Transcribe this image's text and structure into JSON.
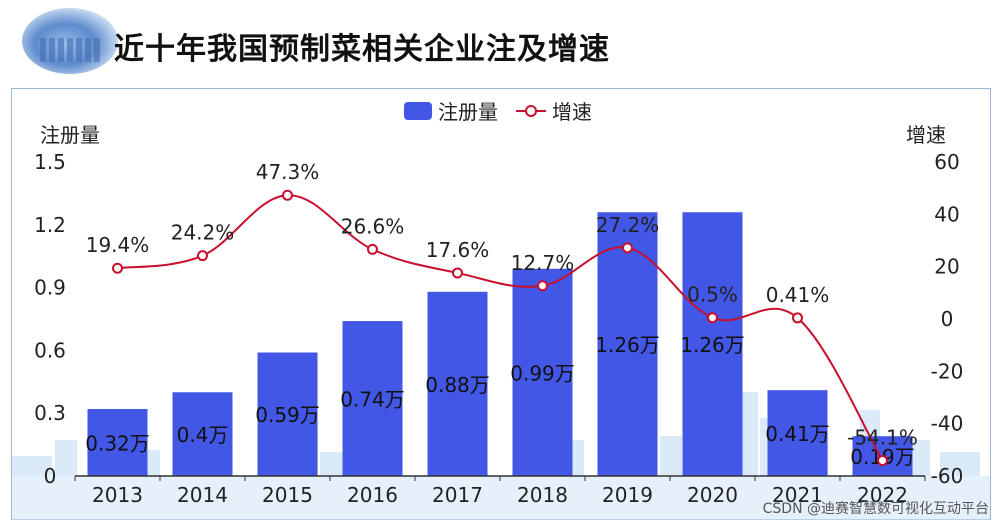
{
  "header": {
    "title": "近十年我国预制菜相关企业注及增速"
  },
  "watermark": "CSDN @迪赛智慧数可视化互动平台",
  "colors": {
    "bar": "#4257e6",
    "line": "#c8102e",
    "skyline": "#cfe3f7"
  },
  "chart_data": {
    "type": "bar",
    "categories": [
      "2013",
      "2014",
      "2015",
      "2016",
      "2017",
      "2018",
      "2019",
      "2020",
      "2021",
      "2022"
    ],
    "series": [
      {
        "name": "注册量",
        "type": "bar",
        "values": [
          0.32,
          0.4,
          0.59,
          0.74,
          0.88,
          0.99,
          1.26,
          1.26,
          0.41,
          0.19
        ],
        "labels": [
          "0.32万",
          "0.4万",
          "0.59万",
          "0.74万",
          "0.88万",
          "0.99万",
          "1.26万",
          "1.26万",
          "0.41万",
          "0.19万"
        ]
      },
      {
        "name": "增速",
        "type": "line",
        "values": [
          19.4,
          24.2,
          47.3,
          26.6,
          17.6,
          12.7,
          27.2,
          0.5,
          0.41,
          -54.1
        ],
        "labels": [
          "19.4%",
          "24.2%",
          "47.3%",
          "26.6%",
          "17.6%",
          "12.7%",
          "27.2%",
          "0.5%",
          "0.41%",
          "-54.1%"
        ]
      }
    ],
    "y_left": {
      "label": "注册量",
      "min": 0,
      "max": 1.5,
      "ticks": [
        "0",
        "0.3",
        "0.6",
        "0.9",
        "1.2",
        "1.5"
      ]
    },
    "y_right": {
      "label": "增速",
      "min": -60,
      "max": 60,
      "ticks": [
        "-60",
        "-40",
        "-20",
        "0",
        "20",
        "40",
        "60"
      ]
    },
    "legend": {
      "position": "top-center"
    }
  }
}
